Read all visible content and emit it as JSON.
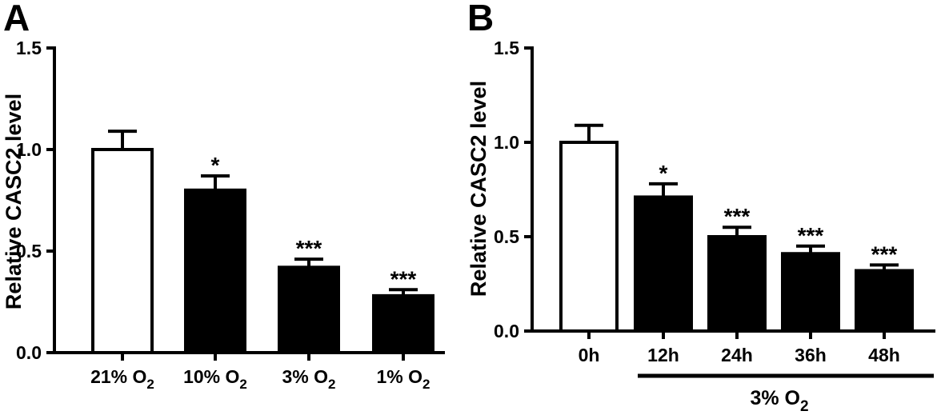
{
  "chart_data": [
    {
      "type": "bar",
      "panel": "A",
      "ylabel": "Relative CASC2 level",
      "ylim": [
        0,
        1.5
      ],
      "yticks": [
        "0.0",
        "0.5",
        "1.0",
        "1.5"
      ],
      "categories": [
        {
          "main": "21% O",
          "sub": "2"
        },
        {
          "main": "10% O",
          "sub": "2"
        },
        {
          "main": "3% O",
          "sub": "2"
        },
        {
          "main": "1% O",
          "sub": "2"
        }
      ],
      "values": [
        1.0,
        0.8,
        0.42,
        0.28
      ],
      "errors": [
        0.09,
        0.07,
        0.04,
        0.03
      ],
      "fills": [
        "#ffffff",
        "#000000",
        "#000000",
        "#000000"
      ],
      "significance": [
        "",
        "*",
        "***",
        "***"
      ],
      "grid": false
    },
    {
      "type": "bar",
      "panel": "B",
      "ylabel": "Relative CASC2 level",
      "ylim": [
        0,
        1.5
      ],
      "yticks": [
        "0.0",
        "0.5",
        "1.0",
        "1.5"
      ],
      "categories": [
        {
          "main": "0h",
          "sub": ""
        },
        {
          "main": "12h",
          "sub": ""
        },
        {
          "main": "24h",
          "sub": ""
        },
        {
          "main": "36h",
          "sub": ""
        },
        {
          "main": "48h",
          "sub": ""
        }
      ],
      "values": [
        1.0,
        0.71,
        0.5,
        0.41,
        0.32
      ],
      "errors": [
        0.09,
        0.07,
        0.05,
        0.04,
        0.03
      ],
      "fills": [
        "#ffffff",
        "#000000",
        "#000000",
        "#000000",
        "#000000"
      ],
      "significance": [
        "",
        "*",
        "***",
        "***",
        "***"
      ],
      "bracket": {
        "main": "3% O",
        "sub": "2",
        "from_index": 1,
        "to_index": 4
      },
      "grid": false
    }
  ]
}
